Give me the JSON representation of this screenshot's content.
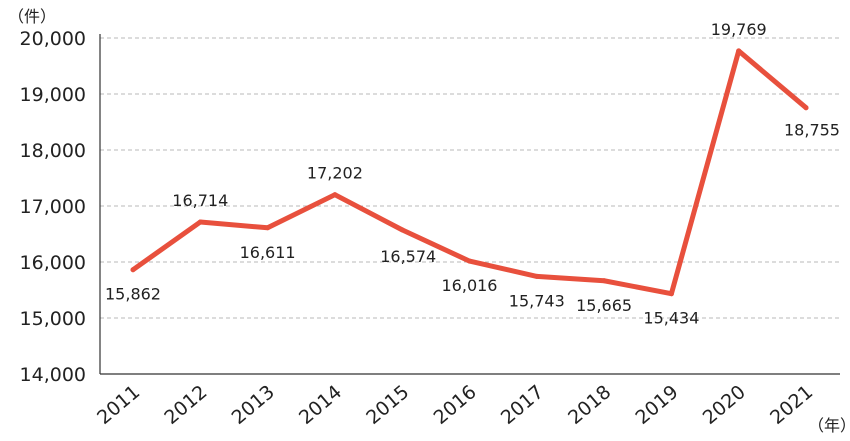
{
  "chart_data": {
    "type": "line",
    "title": "",
    "xlabel": "",
    "ylabel": "",
    "y_unit_label": "（件）",
    "x_unit_label": "（年）",
    "categories": [
      "2011",
      "2012",
      "2013",
      "2014",
      "2015",
      "2016",
      "2017",
      "2018",
      "2019",
      "2020",
      "2021"
    ],
    "series": [
      {
        "values": [
          15862,
          16714,
          16611,
          17202,
          16574,
          16016,
          15743,
          15665,
          15434,
          19769,
          18755
        ],
        "labels": [
          "15,862",
          "16,714",
          "16,611",
          "17,202",
          "16,574",
          "16,016",
          "15,743",
          "15,665",
          "15,434",
          "19,769",
          "18,755"
        ],
        "color": "#e8503d"
      }
    ],
    "ylim": [
      14000,
      20000
    ],
    "yticks": [
      14000,
      15000,
      16000,
      17000,
      18000,
      19000,
      20000
    ],
    "ytick_labels": [
      "14,000",
      "15,000",
      "16,000",
      "17,000",
      "18,000",
      "19,000",
      "20,000"
    ],
    "grid": true,
    "legend": false
  }
}
